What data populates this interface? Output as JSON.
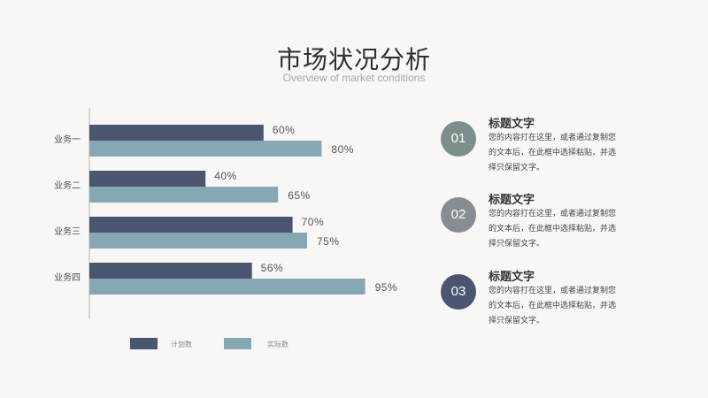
{
  "header": {
    "title": "市场状况分析",
    "subtitle": "Overview of market conditions"
  },
  "colors": {
    "plan": "#4a5670",
    "actual": "#86a8b4",
    "circle_1": "#7d8f8c",
    "circle_2": "#888c93",
    "circle_3": "#4a5670",
    "axis": "#b5b5b5"
  },
  "chart_data": {
    "type": "bar",
    "orientation": "horizontal",
    "categories": [
      "业务一",
      "业务二",
      "业务三",
      "业务四"
    ],
    "series": [
      {
        "name": "计划数",
        "values": [
          60,
          40,
          70,
          56
        ]
      },
      {
        "name": "实际数",
        "values": [
          80,
          65,
          75,
          95
        ]
      }
    ],
    "value_suffix": "%",
    "xlim": [
      0,
      100
    ],
    "grid": false,
    "legend_position": "bottom"
  },
  "items": [
    {
      "number": "01",
      "title": "标题文字",
      "text": "您的内容打在这里，或者通过复制您的文本后，在此框中选择粘贴，并选择只保留文字。"
    },
    {
      "number": "02",
      "title": "标题文字",
      "text": "您的内容打在这里，或者通过复制您的文本后，在此框中选择粘贴，并选择只保留文字。"
    },
    {
      "number": "03",
      "title": "标题文字",
      "text": "您的内容打在这里，或者通过复制您的文本后，在此框中选择粘贴，并选择只保留文字。"
    }
  ]
}
